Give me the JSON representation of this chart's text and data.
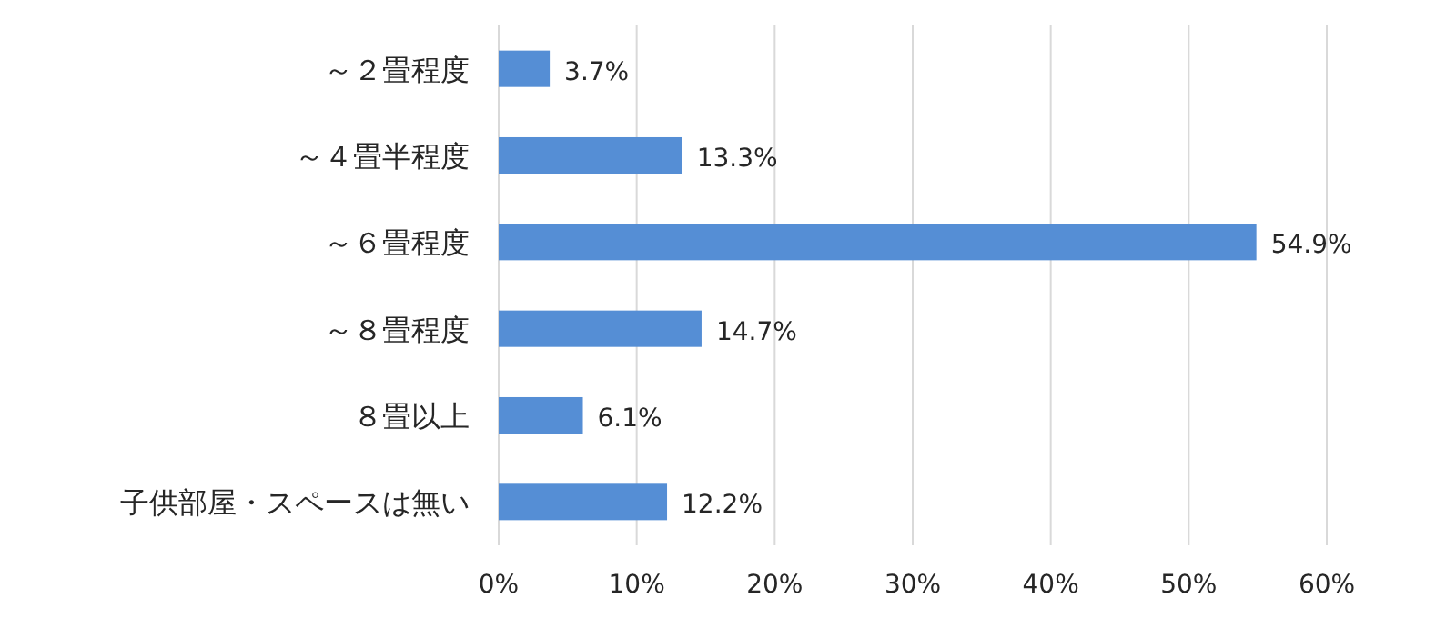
{
  "chart_data": {
    "type": "bar",
    "orientation": "horizontal",
    "categories": [
      "～２畳程度",
      "～４畳半程度",
      "～６畳程度",
      "～８畳程度",
      "８畳以上",
      "子供部屋・スペースは無い"
    ],
    "values": [
      3.7,
      13.3,
      54.9,
      14.7,
      6.1,
      12.2
    ],
    "value_labels": [
      "3.7%",
      "13.3%",
      "54.9%",
      "14.7%",
      "6.1%",
      "12.2%"
    ],
    "color": "#558ed5",
    "xlim": [
      0,
      60
    ],
    "xticks": [
      {
        "value": 0,
        "label": "0%"
      },
      {
        "value": 10,
        "label": "10%"
      },
      {
        "value": 20,
        "label": "20%"
      },
      {
        "value": 30,
        "label": "30%"
      },
      {
        "value": 40,
        "label": "40%"
      },
      {
        "value": 50,
        "label": "50%"
      },
      {
        "value": 60,
        "label": "60%"
      }
    ],
    "grid": "x"
  }
}
